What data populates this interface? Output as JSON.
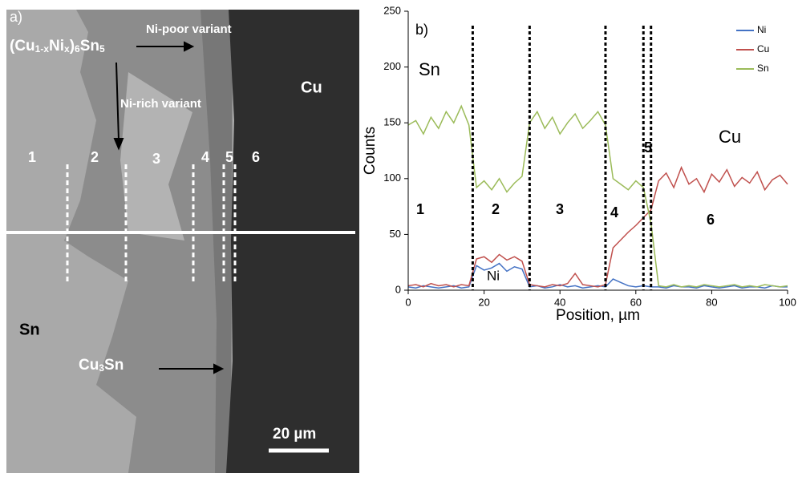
{
  "panel_a": {
    "label": "a)",
    "formula_parts": [
      "(Cu",
      "1-x",
      "Ni",
      "x",
      ")",
      "6",
      "Sn",
      "5"
    ],
    "ni_poor": "Ni-poor variant",
    "ni_rich": "Ni-rich variant",
    "cu": "Cu",
    "sn": "Sn",
    "cu3sn_parts": [
      "Cu",
      "3",
      "Sn"
    ],
    "zones": [
      "1",
      "2",
      "3",
      "4",
      "5",
      "6"
    ],
    "scale_bar": "20 µm"
  },
  "chart_data": {
    "type": "line",
    "panel_label": "b)",
    "xlabel": "Position, µm",
    "ylabel": "Counts",
    "x": [
      0,
      2,
      4,
      6,
      8,
      10,
      12,
      14,
      16,
      18,
      20,
      22,
      24,
      26,
      28,
      30,
      32,
      34,
      36,
      38,
      40,
      42,
      44,
      46,
      48,
      50,
      52,
      54,
      56,
      58,
      60,
      62,
      64,
      66,
      68,
      70,
      72,
      74,
      76,
      78,
      80,
      82,
      84,
      86,
      88,
      90,
      92,
      94,
      96,
      98,
      100
    ],
    "series": [
      {
        "name": "Ni",
        "color": "#4472c4",
        "values": [
          3,
          2,
          4,
          3,
          2,
          3,
          4,
          2,
          3,
          22,
          18,
          20,
          24,
          17,
          21,
          19,
          3,
          4,
          2,
          3,
          5,
          3,
          4,
          2,
          3,
          4,
          3,
          10,
          7,
          4,
          3,
          4,
          3,
          3,
          2,
          4,
          3,
          3,
          2,
          4,
          3,
          2,
          3,
          4,
          2,
          3,
          3,
          2,
          4,
          3,
          3
        ]
      },
      {
        "name": "Cu",
        "color": "#c0504d",
        "values": [
          4,
          5,
          3,
          6,
          4,
          5,
          3,
          5,
          4,
          28,
          30,
          25,
          32,
          27,
          30,
          26,
          5,
          4,
          3,
          5,
          4,
          6,
          15,
          5,
          4,
          3,
          5,
          38,
          45,
          52,
          58,
          65,
          72,
          98,
          105,
          92,
          110,
          95,
          100,
          88,
          104,
          97,
          108,
          93,
          101,
          96,
          106,
          90,
          99,
          103,
          95
        ]
      },
      {
        "name": "Sn",
        "color": "#9bbb59",
        "values": [
          148,
          152,
          140,
          155,
          145,
          160,
          150,
          165,
          148,
          92,
          98,
          90,
          100,
          88,
          96,
          102,
          150,
          160,
          145,
          155,
          140,
          150,
          158,
          145,
          152,
          160,
          148,
          100,
          95,
          90,
          98,
          92,
          60,
          4,
          3,
          5,
          3,
          4,
          3,
          5,
          4,
          3,
          4,
          5,
          3,
          4,
          3,
          5,
          4,
          3,
          4
        ]
      }
    ],
    "boundaries": [
      17,
      32,
      52,
      62,
      64
    ],
    "annotations": [
      "Sn",
      "Cu",
      "Ni"
    ],
    "zones": [
      "1",
      "2",
      "3",
      "4",
      "5",
      "6"
    ],
    "xlim": [
      0,
      100
    ],
    "xticks": [
      0,
      20,
      40,
      60,
      80,
      100
    ],
    "ylim": [
      0,
      250
    ],
    "yticks": [
      0,
      50,
      100,
      150,
      200,
      250
    ],
    "legend": "top-right"
  }
}
